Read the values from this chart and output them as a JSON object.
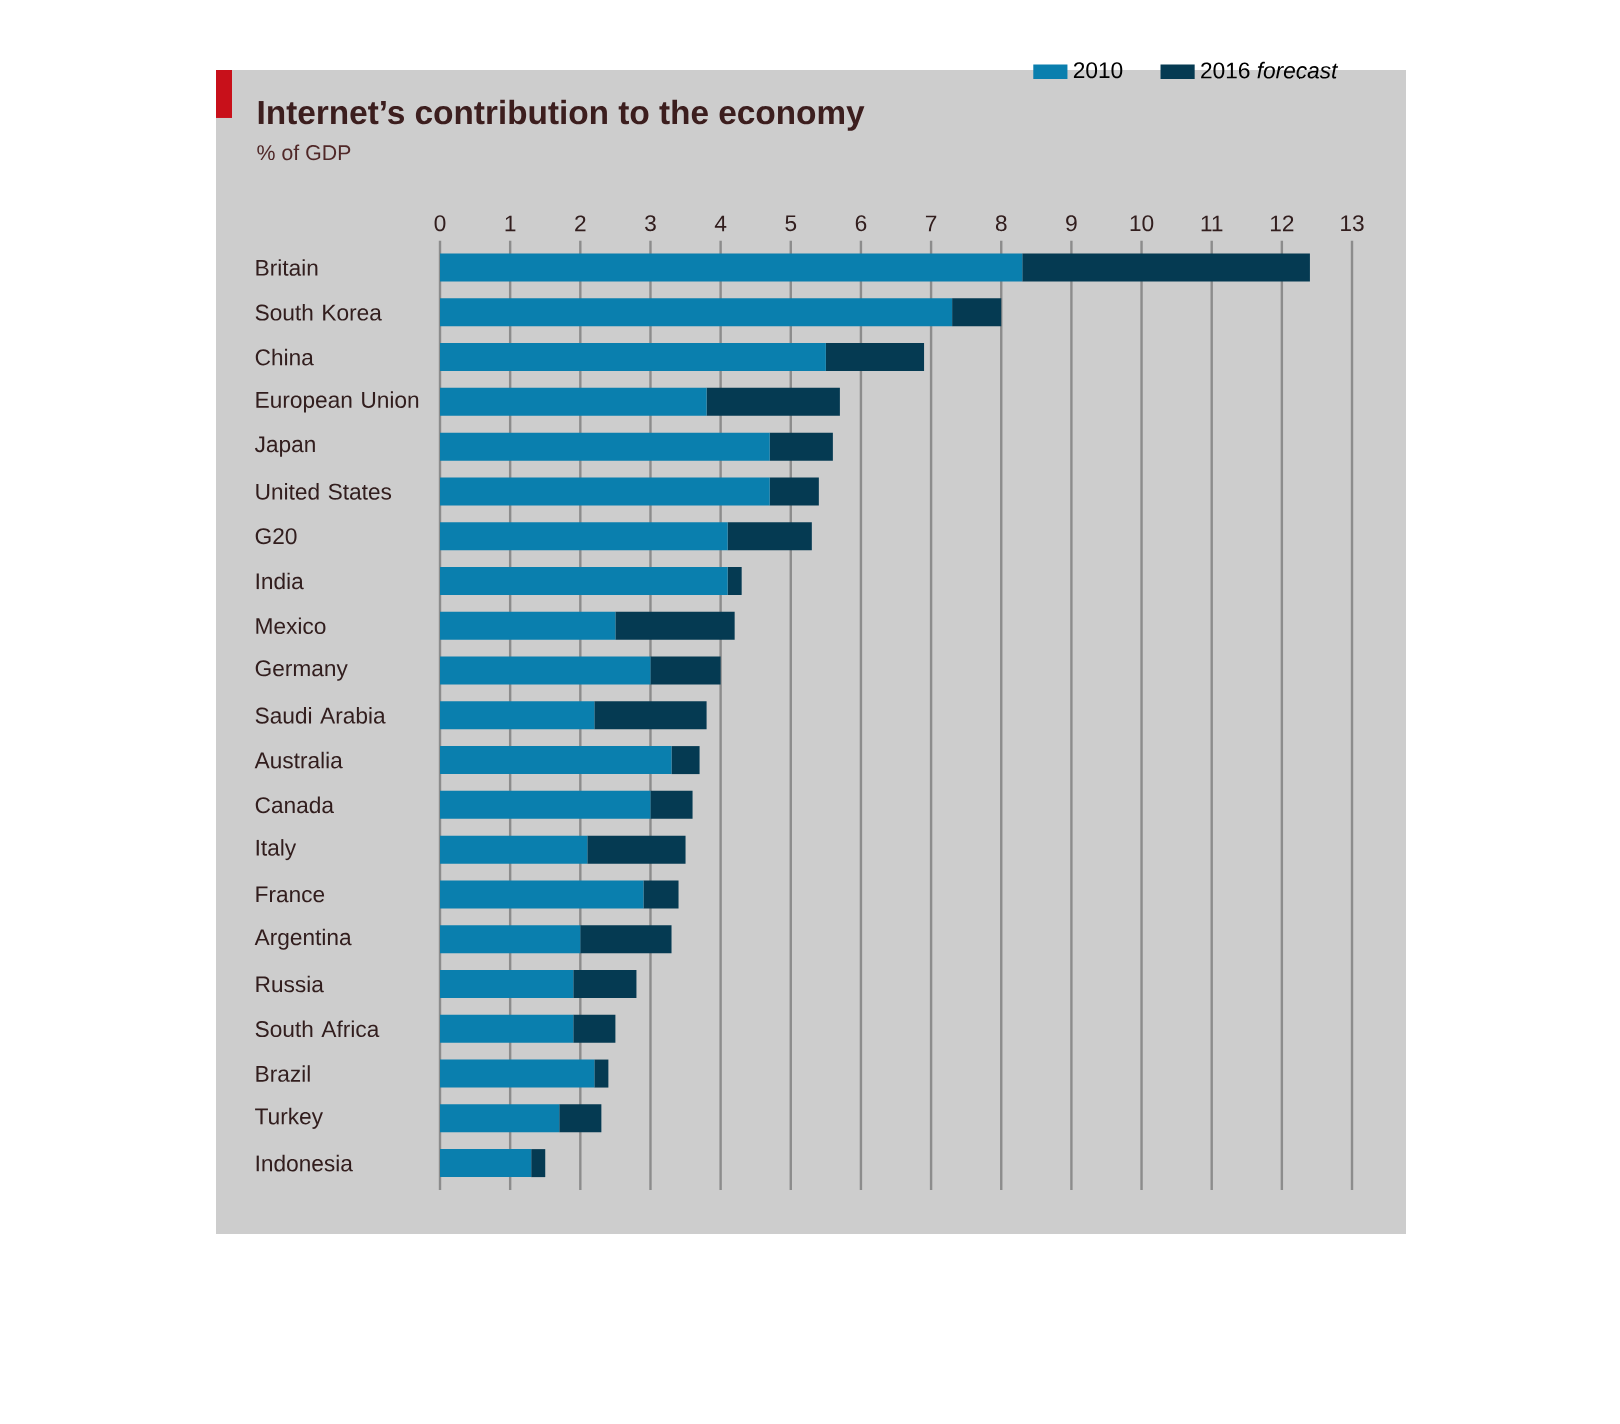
{
  "chart_data": {
    "type": "bar",
    "orientation": "horizontal",
    "stacked": true,
    "title": "Internet’s contribution to the economy",
    "subtitle": "% of GDP",
    "categories": [
      "Britain",
      "South Korea",
      "China",
      "European Union",
      "Japan",
      "United States",
      "G20",
      "India",
      "Mexico",
      "Germany",
      "Saudi Arabia",
      "Australia",
      "Canada",
      "Italy",
      "France",
      "Argentina",
      "Russia",
      "South Africa",
      "Brazil",
      "Turkey",
      "Indonesia"
    ],
    "series": [
      {
        "name": "2010",
        "color": "#0a7fae",
        "values": [
          8.3,
          7.3,
          5.5,
          3.8,
          4.7,
          4.7,
          4.1,
          4.1,
          2.5,
          3.0,
          2.2,
          3.3,
          3.0,
          2.1,
          2.9,
          2.0,
          1.9,
          1.9,
          2.2,
          1.7,
          1.3
        ]
      },
      {
        "name": "2016 *forecast*",
        "color": "#053a52",
        "values": [
          4.1,
          0.7,
          1.4,
          1.9,
          0.9,
          0.7,
          1.2,
          0.2,
          1.7,
          1.0,
          1.6,
          0.4,
          0.6,
          1.4,
          0.5,
          1.3,
          0.9,
          0.6,
          0.2,
          0.6,
          0.2
        ]
      }
    ],
    "xlim": [
      0,
      13
    ],
    "xticks": [
      0,
      1,
      2,
      3,
      4,
      5,
      6,
      7,
      8,
      9,
      10,
      11,
      12,
      13
    ],
    "grid": "x",
    "legend": "top right"
  }
}
